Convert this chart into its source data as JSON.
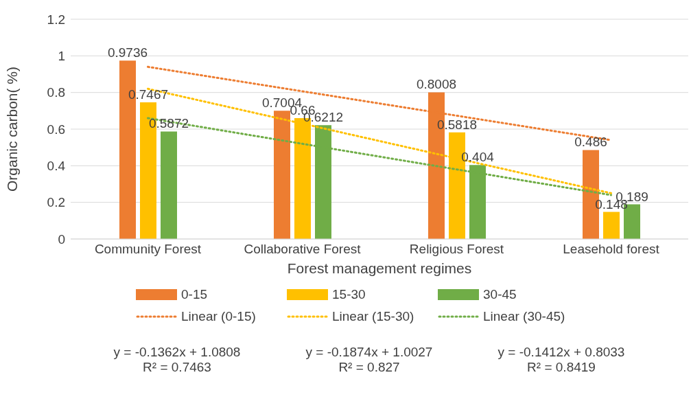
{
  "chart_data": {
    "type": "bar",
    "xlabel": "Forest management regimes",
    "ylabel": "Organic carbon( %)",
    "categories": [
      "Community Forest",
      "Collaborative Forest",
      "Religious Forest",
      "Leasehold forest"
    ],
    "series": [
      {
        "name": "0-15",
        "color": "#ed7d31",
        "values": [
          0.9736,
          0.7004,
          0.8008,
          0.486
        ],
        "value_labels": [
          "0.9736",
          "0.7004",
          "0.8008",
          "0.486"
        ]
      },
      {
        "name": "15-30",
        "color": "#ffc000",
        "values": [
          0.7467,
          0.66,
          0.5818,
          0.148
        ],
        "value_labels": [
          "0.7467",
          "0.66",
          "0.5818",
          "0.148"
        ]
      },
      {
        "name": "30-45",
        "color": "#70ad47",
        "values": [
          0.5872,
          0.6212,
          0.404,
          0.189
        ],
        "value_labels": [
          "0.5872",
          "0.6212",
          "0.404",
          "0.189"
        ]
      },
      {
        "name": "Linear (0-15)",
        "type": "line",
        "color": "#ed7d31",
        "line_style": "dotted",
        "x": [
          "Community Forest",
          "Leasehold forest"
        ],
        "values": [
          0.94,
          0.54
        ]
      },
      {
        "name": "Linear (15-30)",
        "type": "line",
        "color": "#ffc000",
        "line_style": "dotted",
        "x": [
          "Community Forest",
          "Leasehold forest"
        ],
        "values": [
          0.82,
          0.25
        ]
      },
      {
        "name": "Linear (30-45)",
        "type": "line",
        "color": "#70ad47",
        "line_style": "dotted",
        "x": [
          "Community Forest",
          "Leasehold forest"
        ],
        "values": [
          0.66,
          0.24
        ]
      }
    ],
    "ylim": [
      0,
      1.2
    ],
    "yticks": [
      0,
      0.2,
      0.4,
      0.6,
      0.8,
      1,
      1.2
    ],
    "grid": "y",
    "legend": "bottom",
    "annotations": [
      "y = -0.1362x + 1.0808\nR² = 0.7463",
      "y = -0.1874x + 1.0027\nR² = 0.827",
      "y = -0.1412x + 0.8033\nR² = 0.8419"
    ]
  }
}
